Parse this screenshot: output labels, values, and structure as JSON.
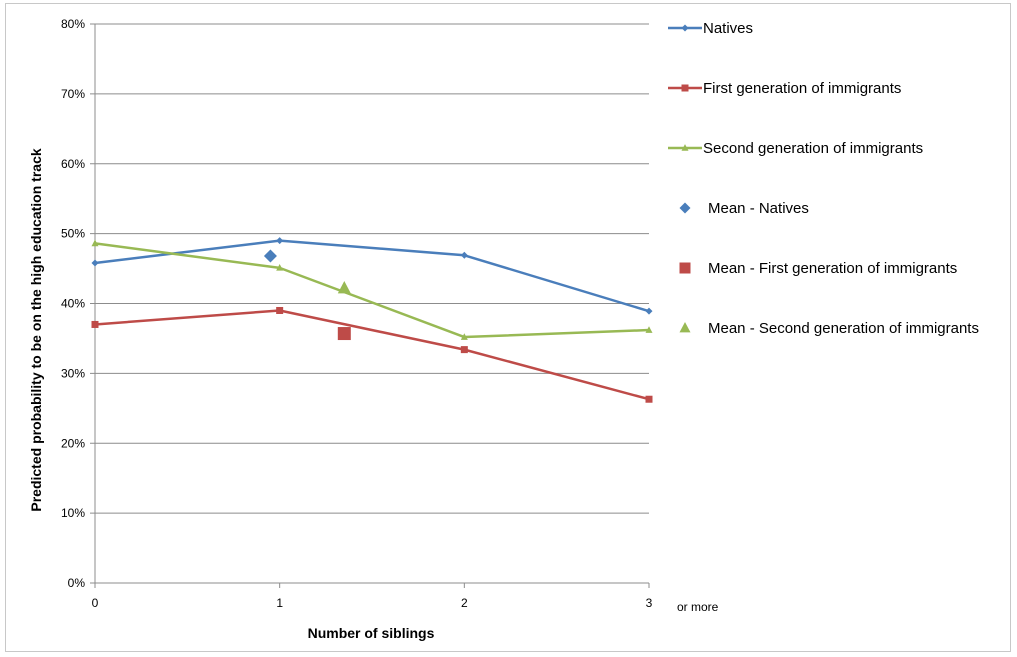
{
  "chart_data": {
    "type": "line",
    "title": "",
    "xlabel": "Number of siblings",
    "ylabel": "Predicted probability to be on the high education track",
    "x_categories": [
      "0",
      "1",
      "2",
      "3"
    ],
    "x_extra_label": "or more",
    "ylim": [
      0,
      0.8
    ],
    "y_ticks": [
      "0%",
      "10%",
      "20%",
      "30%",
      "40%",
      "50%",
      "60%",
      "70%",
      "80%"
    ],
    "grid": true,
    "legend_position": "right",
    "series": [
      {
        "name": "Natives",
        "color": "#4a7ebb",
        "marker": "diamond",
        "x": [
          0,
          1,
          2,
          3
        ],
        "y": [
          0.458,
          0.49,
          0.469,
          0.389
        ]
      },
      {
        "name": "First generation of immigrants",
        "color": "#be4b48",
        "marker": "square",
        "x": [
          0,
          1,
          2,
          3
        ],
        "y": [
          0.37,
          0.39,
          0.334,
          0.263
        ]
      },
      {
        "name": "Second generation of immigrants",
        "color": "#98b954",
        "marker": "triangle",
        "x": [
          0,
          1,
          2,
          3
        ],
        "y": [
          0.486,
          0.451,
          0.352,
          0.362
        ]
      }
    ],
    "means": [
      {
        "name": "Mean  - Natives",
        "color": "#4a7ebb",
        "marker": "diamond",
        "x": 0.95,
        "y": 0.468
      },
      {
        "name": "Mean  - First generation of immigrants",
        "color": "#be4b48",
        "marker": "square",
        "x": 1.35,
        "y": 0.357
      },
      {
        "name": "Mean  - Second generation of immigrants",
        "color": "#98b954",
        "marker": "triangle",
        "x": 1.35,
        "y": 0.422
      }
    ]
  }
}
